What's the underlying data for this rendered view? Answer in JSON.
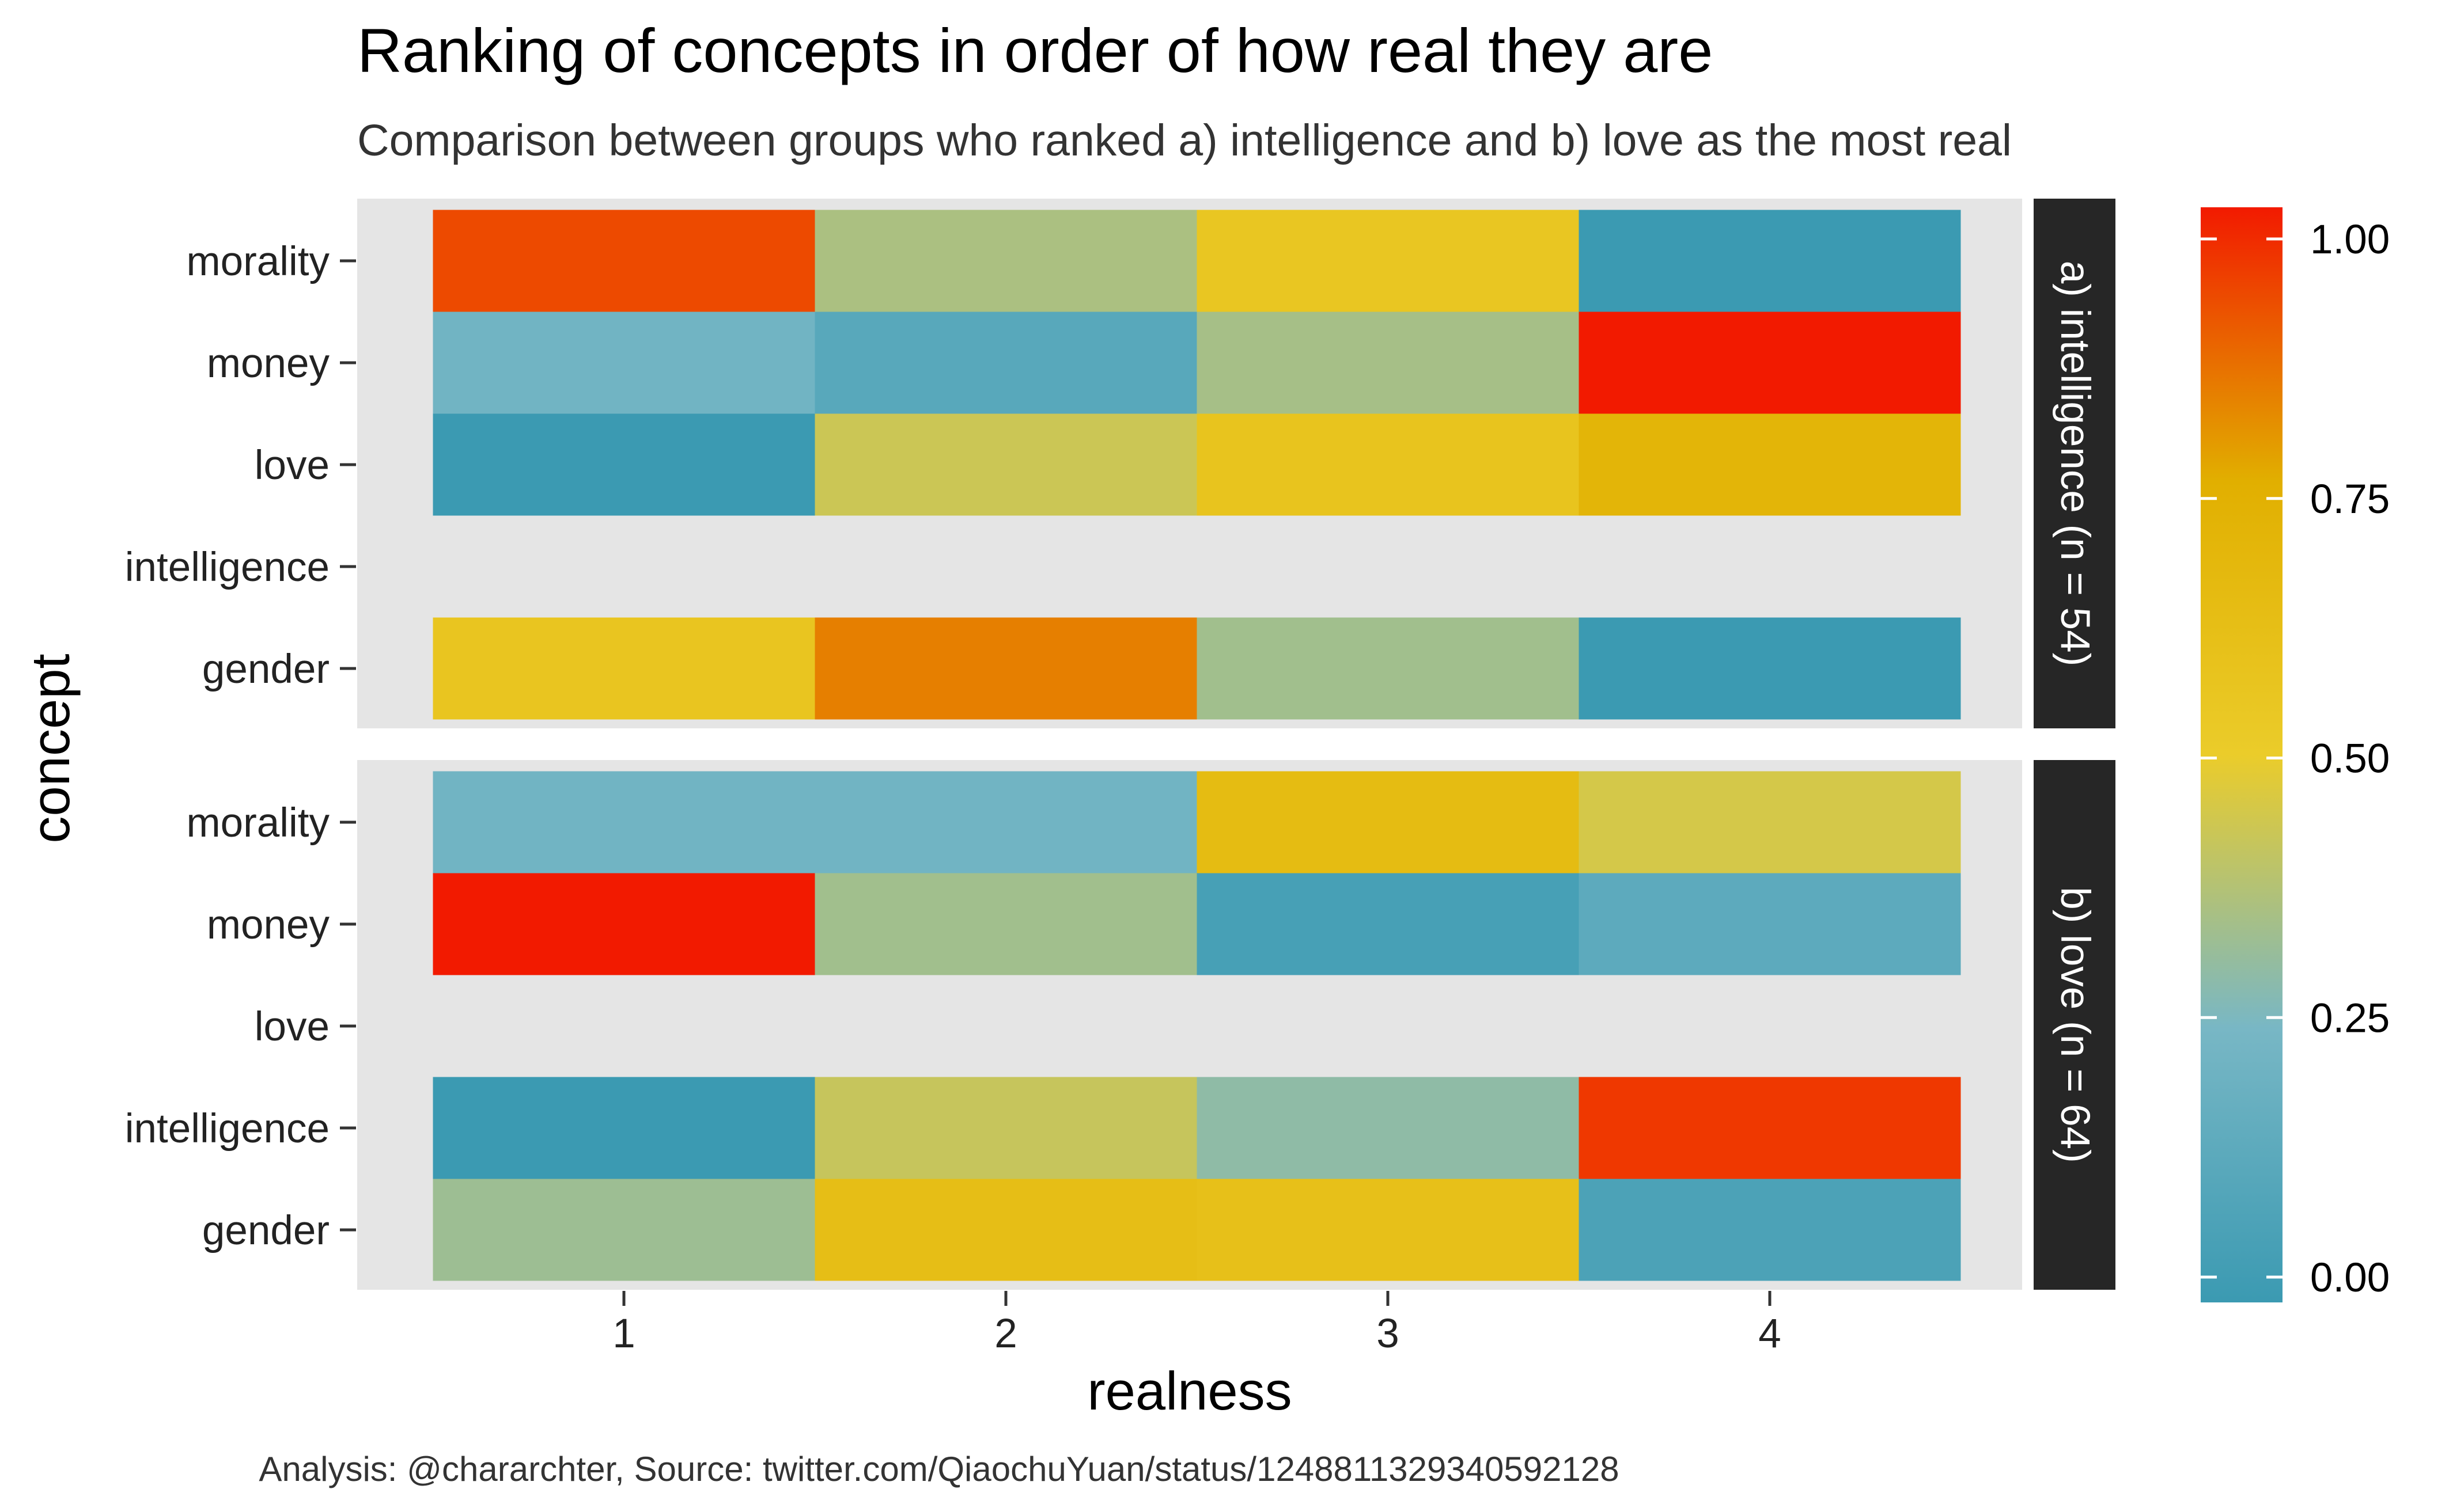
{
  "title": "Ranking of concepts in order of how real they are",
  "subtitle": "Comparison between groups who ranked a) intelligence and b) love as the most real",
  "caption": "Analysis: @chararchter, Source: twitter.com/QiaochuYuan/status/1248811329340592128",
  "colors": {
    "panel_background": "#E5E5E5",
    "strip_background": "#262626",
    "strip_text": "#FFFFFF",
    "low": "#3B9AB2",
    "mid_low": "#78B7C5",
    "mid": "#EBCC2A",
    "mid_high": "#E1AF00",
    "high": "#F21A00"
  },
  "chart_data": {
    "type": "heatmap",
    "xlabel": "realness",
    "ylabel": "concept",
    "x_categories": [
      "1",
      "2",
      "3",
      "4"
    ],
    "legend": {
      "position": "right",
      "ticks": [
        "0.00",
        "0.25",
        "0.50",
        "0.75",
        "1.00"
      ],
      "range": [
        0,
        1
      ]
    },
    "facets": [
      {
        "label": "a) intelligence (n = 54)",
        "concepts": [
          "morality",
          "money",
          "love",
          "intelligence",
          "gender"
        ],
        "values": [
          [
            0.92,
            0.36,
            0.55,
            0.0
          ],
          [
            0.22,
            0.12,
            0.35,
            1.0
          ],
          [
            0.0,
            0.43,
            0.57,
            0.7
          ],
          [
            null,
            null,
            null,
            null
          ],
          [
            0.56,
            0.83,
            0.34,
            0.0
          ]
        ]
      },
      {
        "label": "b) love (n = 64)",
        "concepts": [
          "morality",
          "money",
          "love",
          "intelligence",
          "gender"
        ],
        "values": [
          [
            0.22,
            0.22,
            0.64,
            0.45
          ],
          [
            1.0,
            0.34,
            0.05,
            0.14
          ],
          [
            null,
            null,
            null,
            null
          ],
          [
            0.0,
            0.42,
            0.3,
            0.95
          ],
          [
            0.33,
            0.62,
            0.6,
            0.07
          ]
        ]
      }
    ]
  }
}
